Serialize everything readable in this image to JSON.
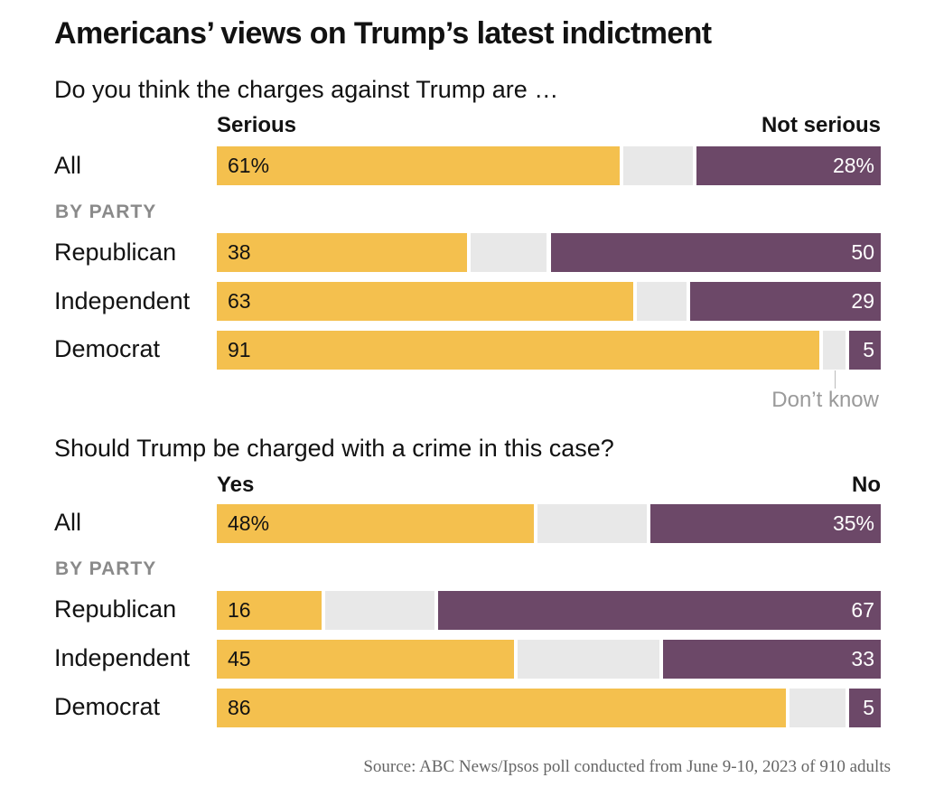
{
  "colors": {
    "yes": "#f4c04e",
    "dont_know": "#e8e8e8",
    "no": "#6c4868"
  },
  "title": "Americans’ views on Trump’s latest indictment",
  "source": "Source: ABC News/Ipsos poll conducted from June 9-10, 2023 of 910 adults",
  "dont_know_label": "Don’t know",
  "chart_data": [
    {
      "type": "bar",
      "stacked": true,
      "orientation": "horizontal",
      "title": "Do you think the charges against Trump are …",
      "left_label": "Serious",
      "right_label": "Not serious",
      "section_label": "BY PARTY",
      "categories": [
        "All",
        "Republican",
        "Independent",
        "Democrat"
      ],
      "series": [
        {
          "name": "Serious",
          "values": [
            61,
            38,
            63,
            91
          ],
          "labels": [
            "61%",
            "38",
            "63",
            "91"
          ]
        },
        {
          "name": "Don’t know",
          "values": [
            11,
            12,
            8,
            4
          ]
        },
        {
          "name": "Not serious",
          "values": [
            28,
            50,
            29,
            5
          ],
          "labels": [
            "28%",
            "50",
            "29",
            "5"
          ]
        }
      ],
      "xlim": [
        0,
        100
      ]
    },
    {
      "type": "bar",
      "stacked": true,
      "orientation": "horizontal",
      "title": "Should Trump be charged with a crime in this case?",
      "left_label": "Yes",
      "right_label": "No",
      "section_label": "BY PARTY",
      "categories": [
        "All",
        "Republican",
        "Independent",
        "Democrat"
      ],
      "series": [
        {
          "name": "Yes",
          "values": [
            48,
            16,
            45,
            86
          ],
          "labels": [
            "48%",
            "16",
            "45",
            "86"
          ]
        },
        {
          "name": "Don’t know",
          "values": [
            17,
            17,
            22,
            9
          ]
        },
        {
          "name": "No",
          "values": [
            35,
            67,
            33,
            5
          ],
          "labels": [
            "35%",
            "67",
            "33",
            "5"
          ]
        }
      ],
      "xlim": [
        0,
        100
      ]
    }
  ]
}
